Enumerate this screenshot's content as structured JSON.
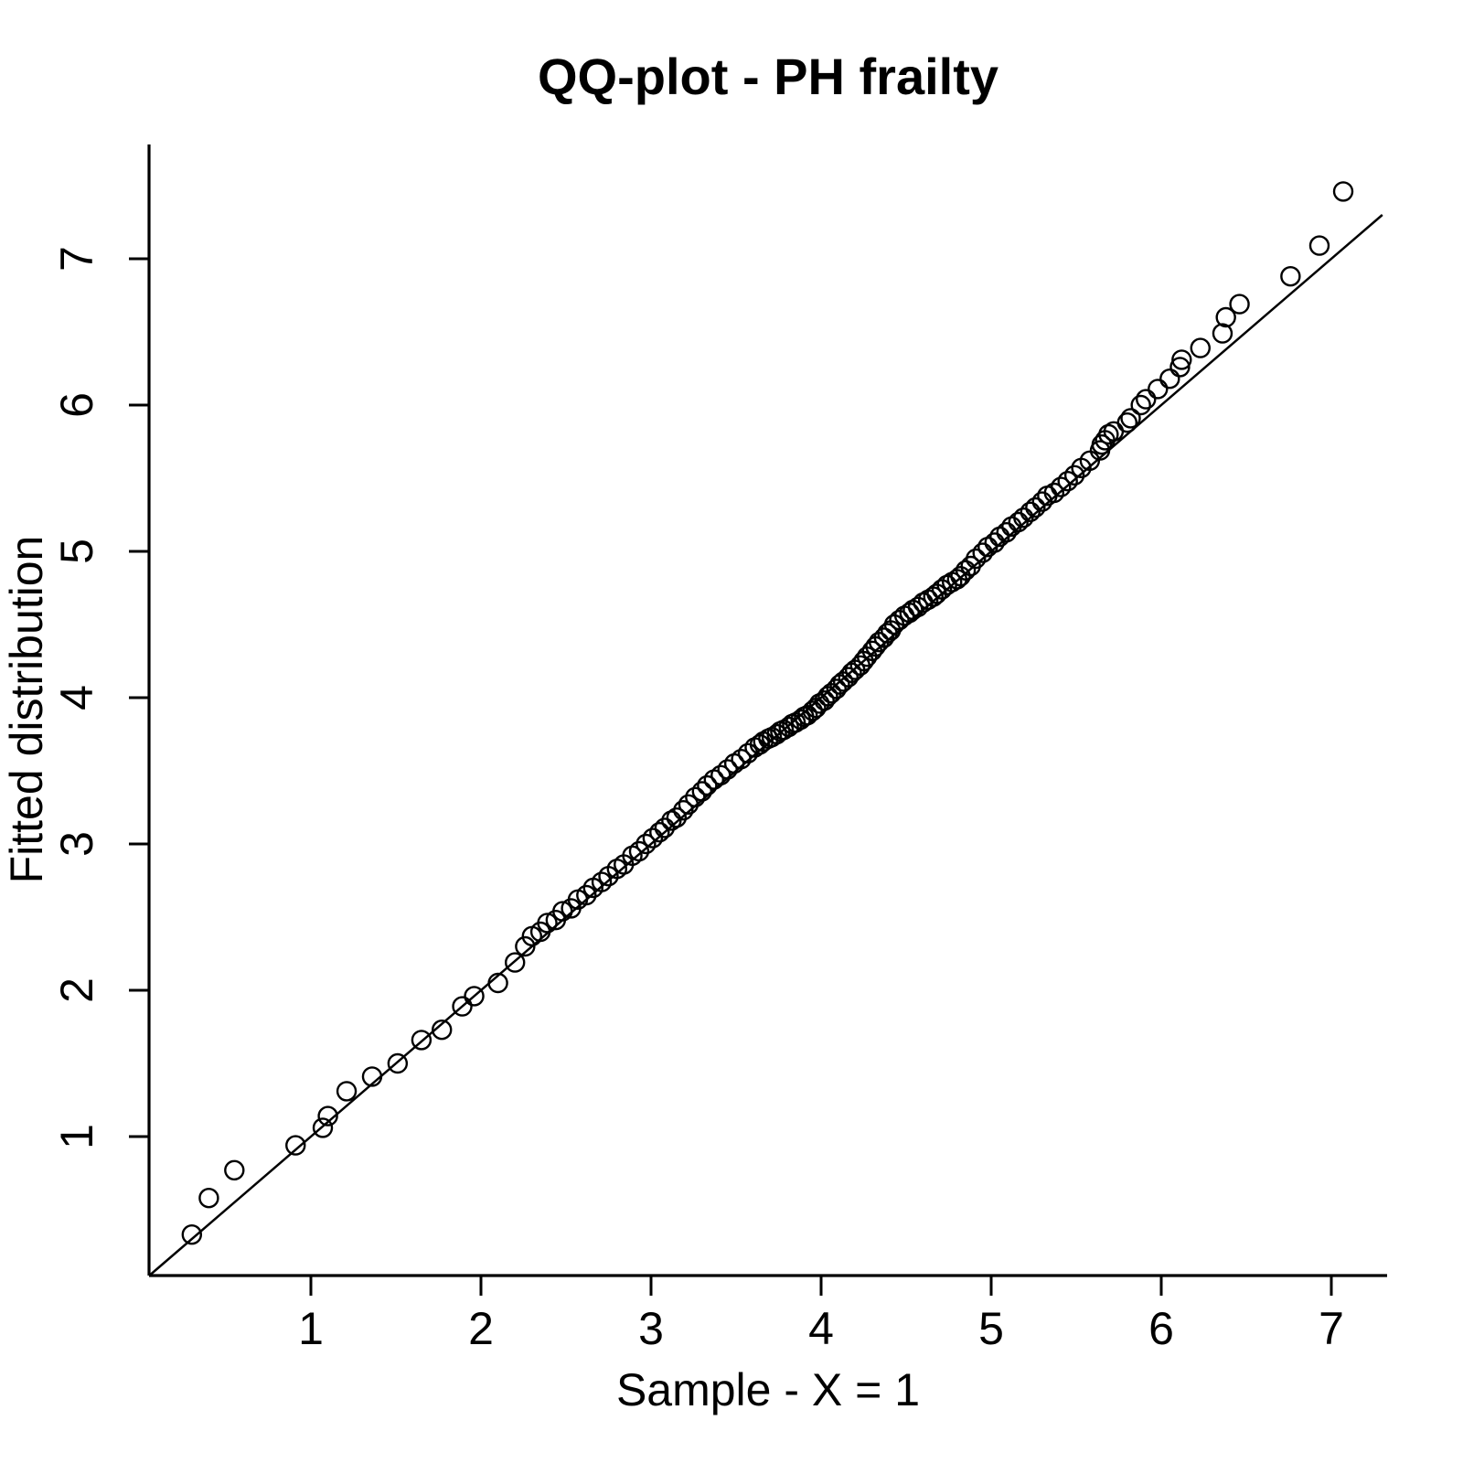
{
  "page": {
    "background": "#ffffff",
    "foreground": "#000000"
  },
  "chart_data": {
    "type": "scatter",
    "title": "QQ-plot - PH frailty",
    "xlabel": "Sample - X = 1",
    "ylabel": "Fitted distribution",
    "xlim": [
      0.03,
      7.35
    ],
    "ylim": [
      0.06,
      7.8
    ],
    "xticks": [
      1,
      2,
      3,
      4,
      5,
      6,
      7
    ],
    "yticks": [
      1,
      2,
      3,
      4,
      5,
      6,
      7
    ],
    "grid": false,
    "legend": "none",
    "reference_line": {
      "type": "identity",
      "intercept": 0,
      "slope": 1,
      "x_from": 0.05,
      "x_to": 7.3,
      "color": "#000000"
    },
    "marker": {
      "shape": "open-circle",
      "radius_px": 10,
      "stroke_px": 2.4,
      "color": "#000000",
      "fill": "none"
    },
    "points": [
      [
        0.3,
        0.33
      ],
      [
        0.4,
        0.58
      ],
      [
        0.55,
        0.77
      ],
      [
        0.91,
        0.94
      ],
      [
        1.07,
        1.06
      ],
      [
        1.1,
        1.14
      ],
      [
        1.21,
        1.31
      ],
      [
        1.36,
        1.41
      ],
      [
        1.51,
        1.5
      ],
      [
        1.65,
        1.66
      ],
      [
        1.77,
        1.73
      ],
      [
        1.89,
        1.89
      ],
      [
        1.96,
        1.96
      ],
      [
        2.1,
        2.05
      ],
      [
        2.2,
        2.19
      ],
      [
        2.26,
        2.3
      ],
      [
        2.3,
        2.37
      ],
      [
        2.35,
        2.4
      ],
      [
        2.39,
        2.46
      ],
      [
        2.44,
        2.48
      ],
      [
        2.48,
        2.54
      ],
      [
        2.53,
        2.56
      ],
      [
        2.57,
        2.62
      ],
      [
        2.62,
        2.65
      ],
      [
        2.66,
        2.7
      ],
      [
        2.71,
        2.74
      ],
      [
        2.75,
        2.78
      ],
      [
        2.8,
        2.83
      ],
      [
        2.84,
        2.86
      ],
      [
        2.89,
        2.92
      ],
      [
        2.93,
        2.95
      ],
      [
        2.97,
        3.0
      ],
      [
        3.01,
        3.04
      ],
      [
        3.05,
        3.08
      ],
      [
        3.08,
        3.11
      ],
      [
        3.12,
        3.16
      ],
      [
        3.15,
        3.18
      ],
      [
        3.19,
        3.23
      ],
      [
        3.22,
        3.27
      ],
      [
        3.26,
        3.32
      ],
      [
        3.3,
        3.36
      ],
      [
        3.33,
        3.4
      ],
      [
        3.37,
        3.44
      ],
      [
        3.41,
        3.47
      ],
      [
        3.45,
        3.51
      ],
      [
        3.49,
        3.55
      ],
      [
        3.53,
        3.58
      ],
      [
        3.57,
        3.62
      ],
      [
        3.61,
        3.66
      ],
      [
        3.64,
        3.68
      ],
      [
        3.66,
        3.7
      ],
      [
        3.69,
        3.72
      ],
      [
        3.71,
        3.73
      ],
      [
        3.74,
        3.75
      ],
      [
        3.76,
        3.77
      ],
      [
        3.78,
        3.78
      ],
      [
        3.81,
        3.8
      ],
      [
        3.83,
        3.82
      ],
      [
        3.85,
        3.83
      ],
      [
        3.88,
        3.85
      ],
      [
        3.9,
        3.87
      ],
      [
        3.92,
        3.88
      ],
      [
        3.95,
        3.91
      ],
      [
        3.97,
        3.93
      ],
      [
        3.99,
        3.96
      ],
      [
        4.02,
        3.98
      ],
      [
        4.04,
        4.01
      ],
      [
        4.06,
        4.03
      ],
      [
        4.09,
        4.06
      ],
      [
        4.11,
        4.09
      ],
      [
        4.13,
        4.11
      ],
      [
        4.16,
        4.14
      ],
      [
        4.18,
        4.17
      ],
      [
        4.2,
        4.19
      ],
      [
        4.23,
        4.22
      ],
      [
        4.25,
        4.25
      ],
      [
        4.27,
        4.28
      ],
      [
        4.3,
        4.32
      ],
      [
        4.32,
        4.35
      ],
      [
        4.34,
        4.38
      ],
      [
        4.37,
        4.41
      ],
      [
        4.39,
        4.44
      ],
      [
        4.41,
        4.46
      ],
      [
        4.43,
        4.5
      ],
      [
        4.46,
        4.53
      ],
      [
        4.49,
        4.56
      ],
      [
        4.52,
        4.58
      ],
      [
        4.54,
        4.6
      ],
      [
        4.57,
        4.62
      ],
      [
        4.6,
        4.65
      ],
      [
        4.63,
        4.67
      ],
      [
        4.66,
        4.69
      ],
      [
        4.68,
        4.71
      ],
      [
        4.71,
        4.74
      ],
      [
        4.74,
        4.77
      ],
      [
        4.77,
        4.79
      ],
      [
        4.8,
        4.81
      ],
      [
        4.82,
        4.83
      ],
      [
        4.85,
        4.87
      ],
      [
        4.88,
        4.9
      ],
      [
        4.91,
        4.95
      ],
      [
        4.95,
        4.99
      ],
      [
        4.98,
        5.03
      ],
      [
        5.02,
        5.06
      ],
      [
        5.05,
        5.1
      ],
      [
        5.09,
        5.13
      ],
      [
        5.12,
        5.17
      ],
      [
        5.16,
        5.2
      ],
      [
        5.19,
        5.23
      ],
      [
        5.23,
        5.27
      ],
      [
        5.26,
        5.3
      ],
      [
        5.3,
        5.34
      ],
      [
        5.33,
        5.38
      ],
      [
        5.37,
        5.4
      ],
      [
        5.41,
        5.44
      ],
      [
        5.45,
        5.48
      ],
      [
        5.49,
        5.52
      ],
      [
        5.53,
        5.57
      ],
      [
        5.58,
        5.62
      ],
      [
        5.64,
        5.69
      ],
      [
        5.65,
        5.73
      ],
      [
        5.67,
        5.76
      ],
      [
        5.69,
        5.8
      ],
      [
        5.72,
        5.82
      ],
      [
        5.8,
        5.88
      ],
      [
        5.82,
        5.91
      ],
      [
        5.88,
        6.0
      ],
      [
        5.91,
        6.04
      ],
      [
        5.98,
        6.11
      ],
      [
        6.05,
        6.18
      ],
      [
        6.11,
        6.26
      ],
      [
        6.12,
        6.31
      ],
      [
        6.23,
        6.39
      ],
      [
        6.36,
        6.49
      ],
      [
        6.38,
        6.6
      ],
      [
        6.46,
        6.69
      ],
      [
        6.76,
        6.88
      ],
      [
        6.93,
        7.09
      ],
      [
        7.07,
        7.46
      ]
    ]
  }
}
